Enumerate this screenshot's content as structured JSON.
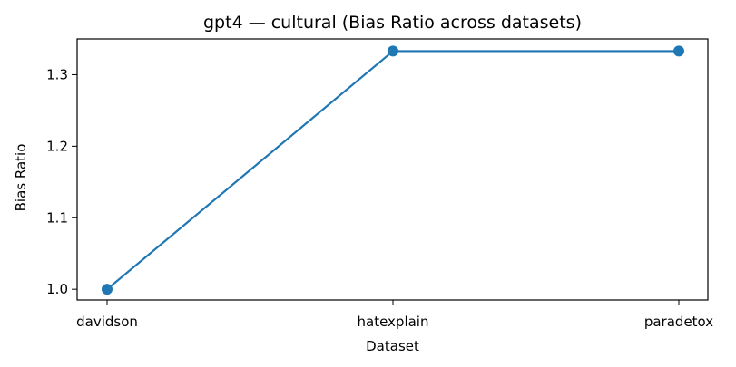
{
  "chart_data": {
    "type": "line",
    "title": "gpt4 — cultural (Bias Ratio across datasets)",
    "xlabel": "Dataset",
    "ylabel": "Bias Ratio",
    "categories": [
      "davidson",
      "hatexplain",
      "paradetox"
    ],
    "series": [
      {
        "values": [
          1.0,
          1.333,
          1.333
        ],
        "color": "#1f77b4"
      }
    ],
    "ylim": [
      0.985,
      1.35
    ],
    "yticks": [
      "1.0",
      "1.1",
      "1.2",
      "1.3"
    ],
    "grid": false,
    "legend": "none"
  },
  "colors": {
    "series": "#1f77b4",
    "axis": "#000000",
    "background": "#ffffff"
  }
}
